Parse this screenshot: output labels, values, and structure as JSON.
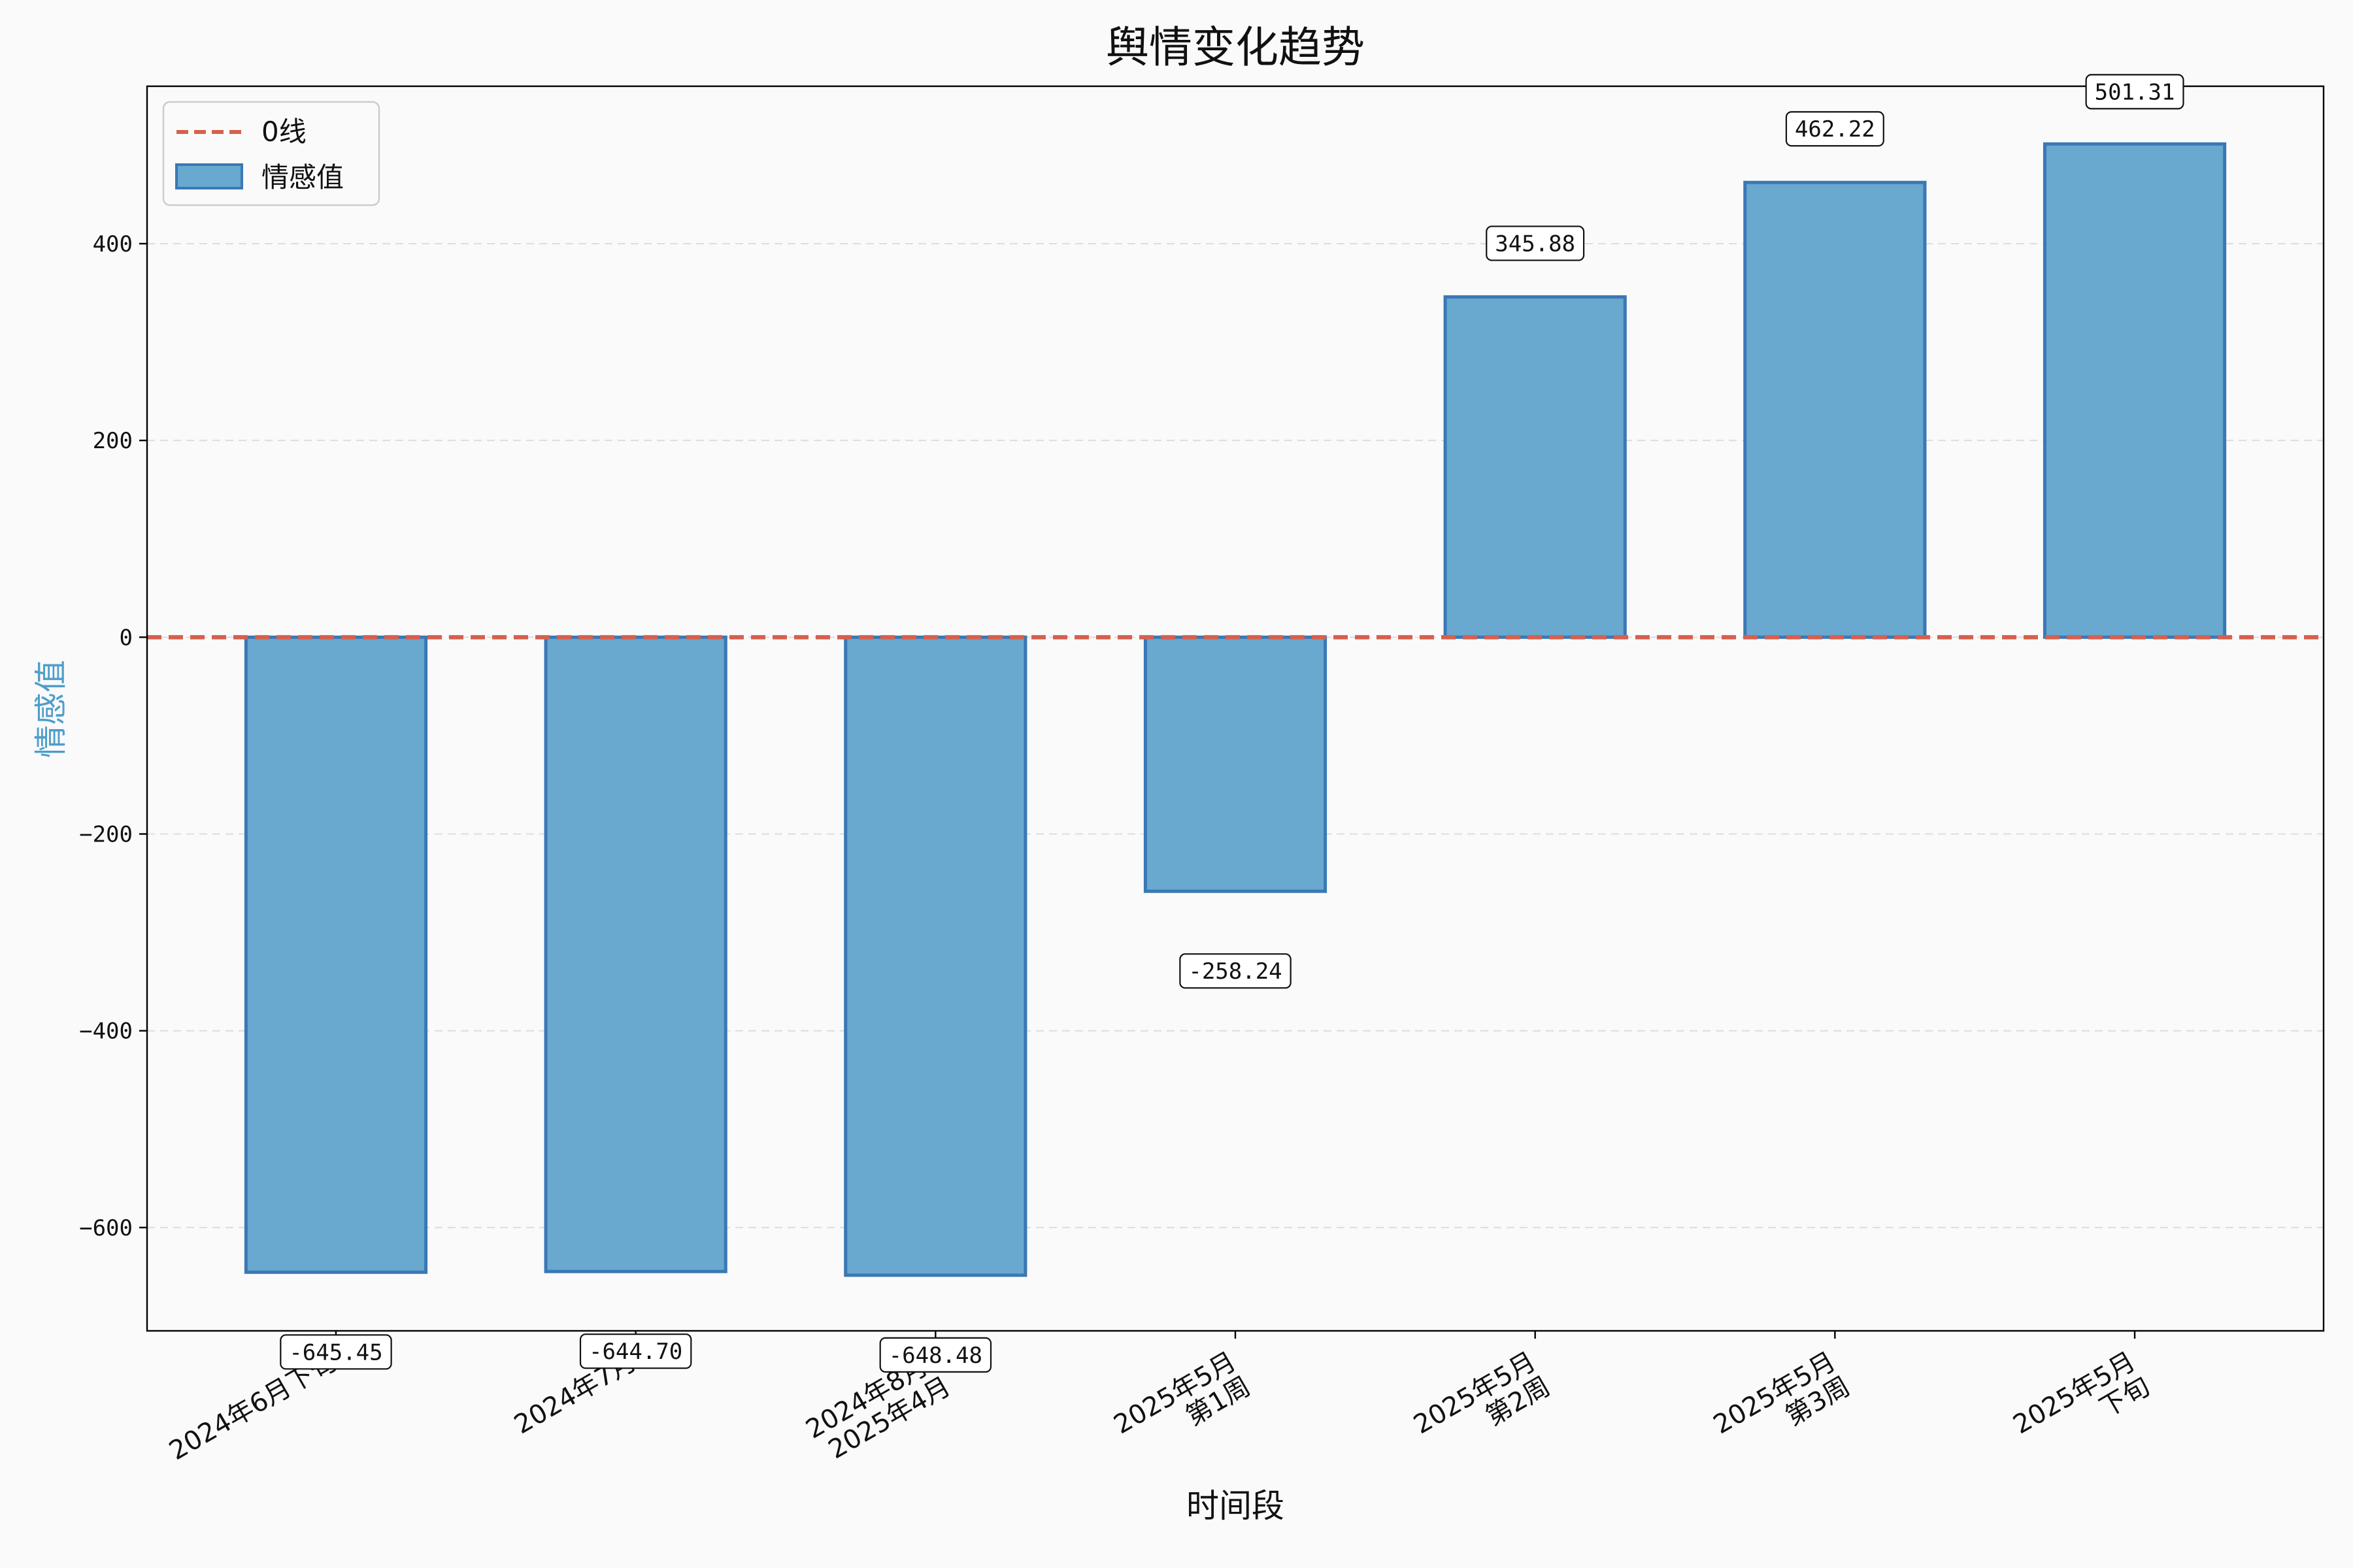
{
  "chart_data": {
    "type": "bar",
    "title": "舆情变化趋势",
    "xlabel": "时间段",
    "ylabel": "情感值",
    "categories": [
      [
        "2024年6月下旬"
      ],
      [
        "2024年7月"
      ],
      [
        "2024年8月-",
        "2025年4月"
      ],
      [
        "2025年5月",
        "第1周"
      ],
      [
        "2025年5月",
        "第2周"
      ],
      [
        "2025年5月",
        "第3周"
      ],
      [
        "2025年5月",
        "下旬"
      ]
    ],
    "series": [
      {
        "name": "情感值",
        "values": [
          -645.45,
          -644.7,
          -648.48,
          -258.24,
          345.88,
          462.22,
          501.31
        ]
      }
    ],
    "value_labels": [
      "-645.45",
      "-644.70",
      "-648.48",
      "-258.24",
      "345.88",
      "462.22",
      "501.31"
    ],
    "reference_line": {
      "name": "0线",
      "y": 0
    },
    "ylim": [
      -705,
      560
    ],
    "yticks": [
      -600,
      -400,
      -200,
      0,
      200,
      400
    ],
    "ytick_labels": [
      "−600",
      "−400",
      "−200",
      "0",
      "200",
      "400"
    ],
    "grid": "horizontal dashed",
    "legend_position": "top-left",
    "colors": {
      "bar_fill": "#69a8cf",
      "bar_edge": "#3a78b5",
      "zero_line": "#d6604d",
      "ylabel": "#4f9ecb",
      "grid": "#dddddd",
      "background": "#fafafa"
    }
  }
}
